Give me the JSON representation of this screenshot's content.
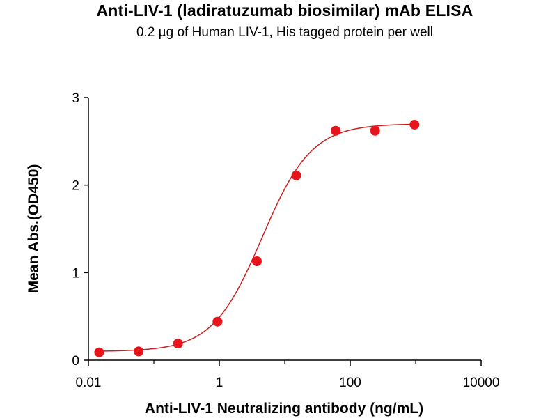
{
  "chart_data": {
    "type": "scatter",
    "title": "Anti-LIV-1 (ladiratuzumab biosimilar) mAb ELISA",
    "subtitle": "0.2 µg of Human LIV-1, His tagged protein per well",
    "xlabel": "Anti-LIV-1 Neutralizing antibody (ng/mL)",
    "ylabel": "Mean Abs.(OD450)",
    "x_scale": "log",
    "xlim": [
      0.01,
      10000
    ],
    "ylim": [
      0,
      3
    ],
    "x_ticks": [
      0.01,
      1,
      100,
      10000
    ],
    "x_tick_labels": [
      "0.01",
      "1",
      "100",
      "10000"
    ],
    "y_ticks": [
      0,
      1,
      2,
      3
    ],
    "y_tick_labels": [
      "0",
      "1",
      "2",
      "3"
    ],
    "grid": false,
    "legend": "none",
    "colors": {
      "points": "#e8141b",
      "curve": "#c8201e",
      "axis": "#000000"
    },
    "series": [
      {
        "x": [
          0.0146,
          0.0586,
          0.234,
          0.938,
          3.75,
          15.0,
          60.0,
          240.0,
          960.0
        ],
        "y": [
          0.09,
          0.1,
          0.19,
          0.44,
          1.13,
          2.11,
          2.62,
          2.62,
          2.69
        ]
      }
    ],
    "fit": {
      "model": "4PL",
      "bottom": 0.1,
      "top": 2.7,
      "ec50": 4.5,
      "hill": 1.15
    }
  }
}
